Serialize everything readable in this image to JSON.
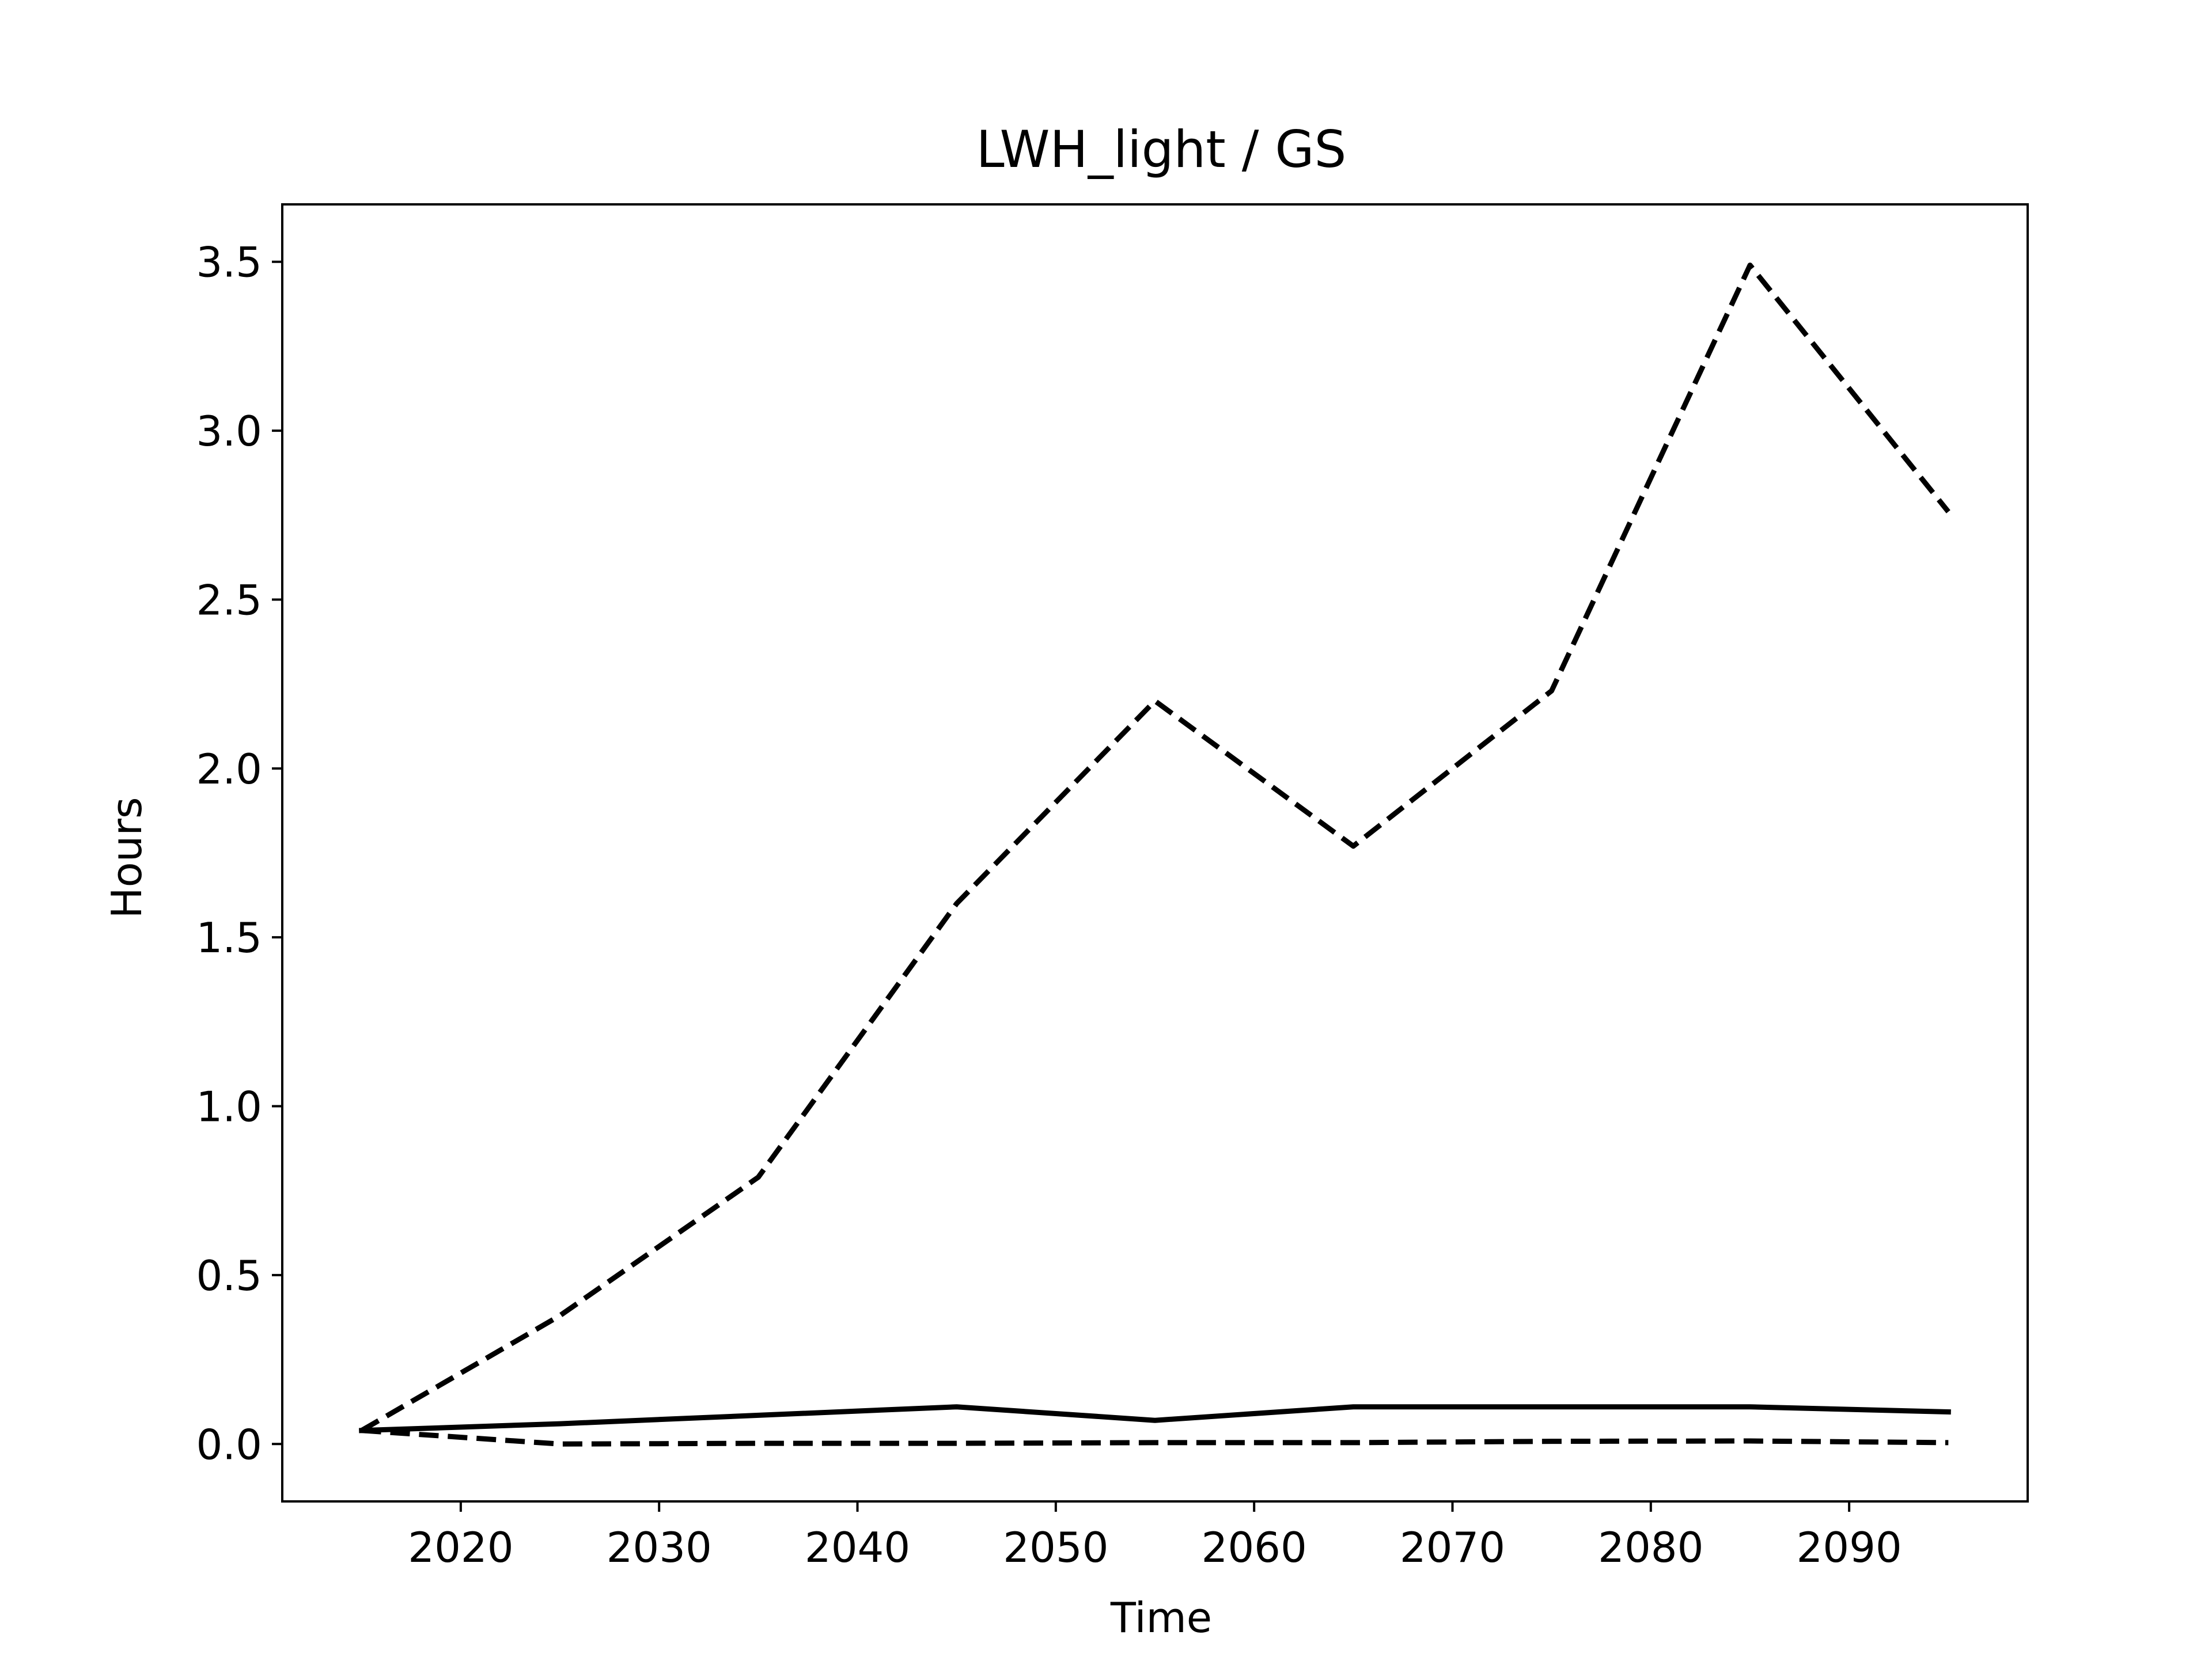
{
  "chart_data": {
    "type": "line",
    "title": "LWH_light / GS",
    "xlabel": "Time",
    "ylabel": "Hours",
    "xlim": [
      2011,
      2099
    ],
    "ylim": [
      -0.17,
      3.67
    ],
    "x_ticks": [
      2020,
      2030,
      2040,
      2050,
      2060,
      2070,
      2080,
      2090
    ],
    "y_ticks": [
      0.0,
      0.5,
      1.0,
      1.5,
      2.0,
      2.5,
      3.0,
      3.5
    ],
    "x_tick_labels": [
      "2020",
      "2030",
      "2040",
      "2050",
      "2060",
      "2070",
      "2080",
      "2090"
    ],
    "y_tick_labels": [
      "0.0",
      "0.5",
      "1.0",
      "1.5",
      "2.0",
      "2.5",
      "3.0",
      "3.5"
    ],
    "grid": false,
    "legend": "none",
    "x": [
      2015,
      2025,
      2035,
      2045,
      2055,
      2065,
      2075,
      2085,
      2095
    ],
    "series": [
      {
        "style": "solid",
        "color": "#000000",
        "values": [
          0.04,
          0.06,
          0.085,
          0.11,
          0.07,
          0.11,
          0.11,
          0.11,
          0.095
        ]
      },
      {
        "style": "dashed",
        "color": "#000000",
        "values": [
          0.04,
          0.38,
          0.79,
          1.6,
          2.2,
          1.77,
          2.23,
          3.49,
          2.76
        ]
      },
      {
        "style": "dashed",
        "color": "#000000",
        "values": [
          0.04,
          0.0,
          0.002,
          0.002,
          0.004,
          0.004,
          0.008,
          0.009,
          0.004
        ]
      }
    ]
  }
}
